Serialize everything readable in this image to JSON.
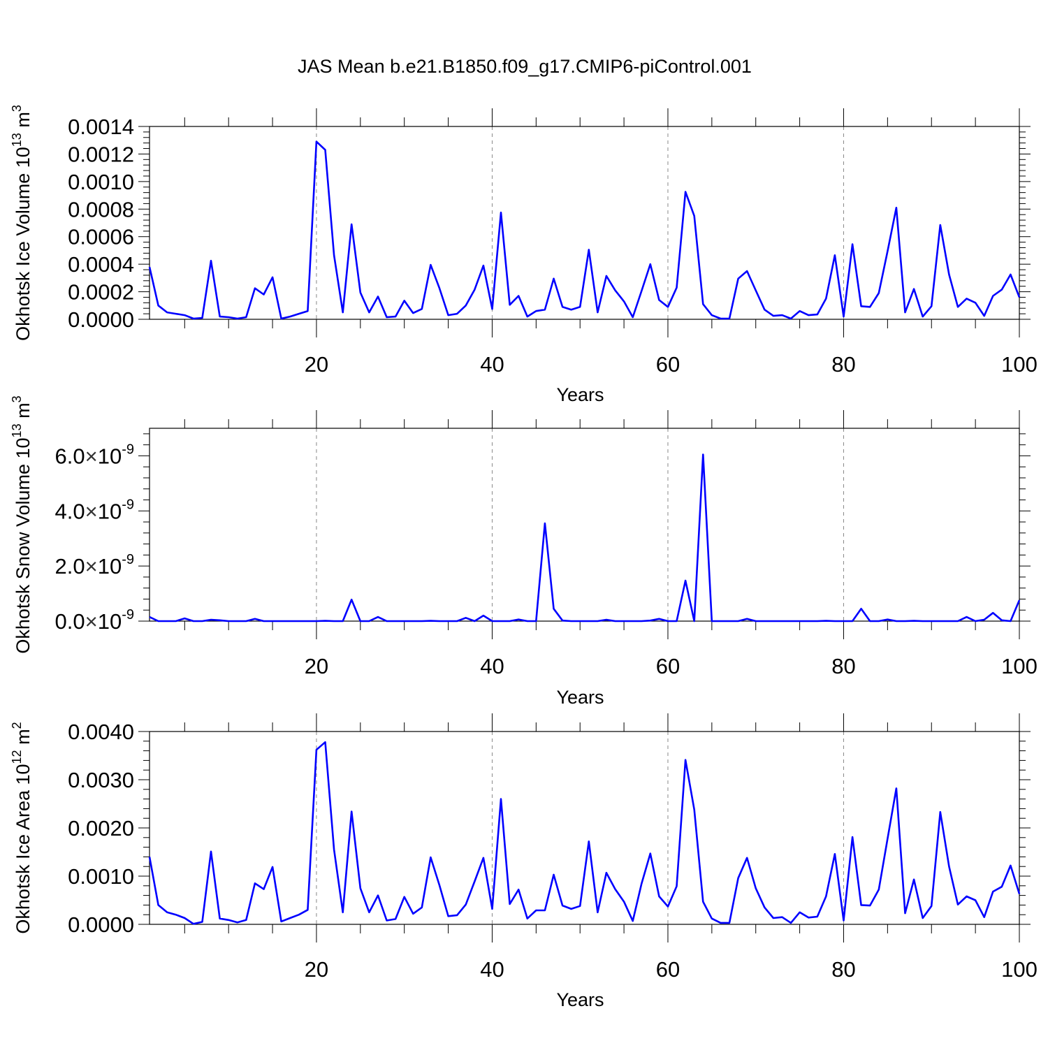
{
  "page": {
    "title": "JAS Mean b.e21.B1850.f09_g17.CMIP6-piControl.001"
  },
  "chart_data": [
    {
      "type": "line",
      "xlabel": "Years",
      "ylabel": "Okhotsk Ice Volume 10",
      "ylabel_sup": "13",
      "ylabel_unit": " m",
      "ylabel_unit_sup": "3",
      "xlim": [
        1,
        100
      ],
      "ylim": [
        0,
        0.0014
      ],
      "grid": "vertical-dashed",
      "color": "#0000ff",
      "x_ticks": [
        {
          "value": 20,
          "label": "20"
        },
        {
          "value": 40,
          "label": "40"
        },
        {
          "value": 60,
          "label": "60"
        },
        {
          "value": 80,
          "label": "80"
        },
        {
          "value": 100,
          "label": "100"
        }
      ],
      "y_ticks": [
        {
          "value": 0,
          "label": "0.0000"
        },
        {
          "value": 0.0002,
          "label": "0.0002"
        },
        {
          "value": 0.0004,
          "label": "0.0004"
        },
        {
          "value": 0.0006,
          "label": "0.0006"
        },
        {
          "value": 0.0008,
          "label": "0.0008"
        },
        {
          "value": 0.001,
          "label": "0.0010"
        },
        {
          "value": 0.0012,
          "label": "0.0012"
        },
        {
          "value": 0.0014,
          "label": "0.0014"
        }
      ],
      "x": [
        1,
        2,
        3,
        4,
        5,
        6,
        7,
        8,
        9,
        10,
        11,
        12,
        13,
        14,
        15,
        16,
        17,
        18,
        19,
        20,
        21,
        22,
        23,
        24,
        25,
        26,
        27,
        28,
        29,
        30,
        31,
        32,
        33,
        34,
        35,
        36,
        37,
        38,
        39,
        40,
        41,
        42,
        43,
        44,
        45,
        46,
        47,
        48,
        49,
        50,
        51,
        52,
        53,
        54,
        55,
        56,
        57,
        58,
        59,
        60,
        61,
        62,
        63,
        64,
        65,
        66,
        67,
        68,
        69,
        70,
        71,
        72,
        73,
        74,
        75,
        76,
        77,
        78,
        79,
        80,
        81,
        82,
        83,
        84,
        85,
        86,
        87,
        88,
        89,
        90,
        91,
        92,
        93,
        94,
        95,
        96,
        97,
        98,
        99,
        100
      ],
      "values": [
        0.00038,
        0.0001,
        5e-05,
        4e-05,
        3e-05,
        5e-06,
        1e-05,
        0.000425,
        2e-05,
        1.5e-05,
        5e-06,
        1.5e-05,
        0.000225,
        0.00018,
        0.000305,
        5e-06,
        2e-05,
        4e-05,
        6e-05,
        0.00129,
        0.00123,
        0.000465,
        5e-05,
        0.00069,
        0.000195,
        5e-05,
        0.000165,
        1.5e-05,
        2e-05,
        0.000135,
        4.5e-05,
        7.5e-05,
        0.000395,
        0.000225,
        3e-05,
        4e-05,
        0.0001,
        0.000215,
        0.00039,
        7.5e-05,
        0.000775,
        0.000105,
        0.00017,
        2e-05,
        6e-05,
        7e-05,
        0.000295,
        9e-05,
        7e-05,
        9e-05,
        0.000505,
        5e-05,
        0.000315,
        0.00021,
        0.00013,
        1.5e-05,
        0.000205,
        0.0004,
        0.00014,
        9e-05,
        0.00023,
        0.000925,
        0.00075,
        0.00011,
        3e-05,
        5e-06,
        5e-06,
        0.000295,
        0.00035,
        0.00021,
        7e-05,
        2.5e-05,
        3e-05,
        5e-06,
        6e-05,
        3e-05,
        3.5e-05,
        0.00015,
        0.000465,
        2e-05,
        0.000545,
        9.5e-05,
        9e-05,
        0.00019,
        0.000495,
        0.00081,
        5e-05,
        0.00022,
        2e-05,
        9.5e-05,
        0.000685,
        0.000325,
        9e-05,
        0.00015,
        0.00012,
        2.5e-05,
        0.00017,
        0.000215,
        0.000325,
        0.00016
      ]
    },
    {
      "type": "line",
      "xlabel": "Years",
      "ylabel": "Okhotsk Snow Volume 10",
      "ylabel_sup": "13",
      "ylabel_unit": " m",
      "ylabel_unit_sup": "3",
      "xlim": [
        1,
        100
      ],
      "ylim": [
        0,
        7e-09
      ],
      "grid": "vertical-dashed",
      "color": "#0000ff",
      "x_ticks": [
        {
          "value": 20,
          "label": "20"
        },
        {
          "value": 40,
          "label": "40"
        },
        {
          "value": 60,
          "label": "60"
        },
        {
          "value": 80,
          "label": "80"
        },
        {
          "value": 100,
          "label": "100"
        }
      ],
      "y_ticks": [
        {
          "value": 0,
          "mantissa": "0.0",
          "exp": "-9"
        },
        {
          "value": 2e-09,
          "mantissa": "2.0",
          "exp": "-9"
        },
        {
          "value": 4e-09,
          "mantissa": "4.0",
          "exp": "-9"
        },
        {
          "value": 6e-09,
          "mantissa": "6.0",
          "exp": "-9"
        }
      ],
      "x": [
        1,
        2,
        3,
        4,
        5,
        6,
        7,
        8,
        9,
        10,
        11,
        12,
        13,
        14,
        15,
        16,
        17,
        18,
        19,
        20,
        21,
        22,
        23,
        24,
        25,
        26,
        27,
        28,
        29,
        30,
        31,
        32,
        33,
        34,
        35,
        36,
        37,
        38,
        39,
        40,
        41,
        42,
        43,
        44,
        45,
        46,
        47,
        48,
        49,
        50,
        51,
        52,
        53,
        54,
        55,
        56,
        57,
        58,
        59,
        60,
        61,
        62,
        63,
        64,
        65,
        66,
        67,
        68,
        69,
        70,
        71,
        72,
        73,
        74,
        75,
        76,
        77,
        78,
        79,
        80,
        81,
        82,
        83,
        84,
        85,
        86,
        87,
        88,
        89,
        90,
        91,
        92,
        93,
        94,
        95,
        96,
        97,
        98,
        99,
        100
      ],
      "values": [
        1.5e-10,
        0,
        0,
        0,
        1e-10,
        0,
        0,
        5e-11,
        3e-11,
        0,
        0,
        0,
        8e-11,
        0,
        0,
        0,
        0,
        0,
        0,
        0,
        1e-11,
        0,
        0,
        7.8e-10,
        0,
        0,
        1.5e-10,
        0,
        0,
        0,
        0,
        0,
        1e-11,
        0,
        0,
        0,
        1.2e-10,
        0,
        2e-10,
        0,
        0,
        0,
        6e-11,
        0,
        0,
        3.55e-09,
        4.5e-10,
        2e-11,
        0,
        0,
        0,
        0,
        5e-11,
        0,
        0,
        0,
        0,
        2e-11,
        8e-11,
        0,
        0,
        1.47e-09,
        0,
        6.05e-09,
        0,
        0,
        0,
        0,
        8e-11,
        0,
        0,
        0,
        0,
        0,
        0,
        0,
        0,
        1e-11,
        0,
        0,
        0,
        4.5e-10,
        0,
        0,
        6e-11,
        0,
        0,
        1e-11,
        0,
        0,
        0,
        0,
        0,
        1.5e-10,
        0,
        5e-11,
        3e-10,
        3e-11,
        0,
        7.6e-10
      ]
    },
    {
      "type": "line",
      "xlabel": "Years",
      "ylabel": "Okhotsk Ice Area 10",
      "ylabel_sup": "12",
      "ylabel_unit": " m",
      "ylabel_unit_sup": "2",
      "xlim": [
        1,
        100
      ],
      "ylim": [
        0,
        0.004
      ],
      "grid": "vertical-dashed",
      "color": "#0000ff",
      "x_ticks": [
        {
          "value": 20,
          "label": "20"
        },
        {
          "value": 40,
          "label": "40"
        },
        {
          "value": 60,
          "label": "60"
        },
        {
          "value": 80,
          "label": "80"
        },
        {
          "value": 100,
          "label": "100"
        }
      ],
      "y_ticks": [
        {
          "value": 0,
          "label": "0.0000"
        },
        {
          "value": 0.001,
          "label": "0.0010"
        },
        {
          "value": 0.002,
          "label": "0.0020"
        },
        {
          "value": 0.003,
          "label": "0.0030"
        },
        {
          "value": 0.004,
          "label": "0.0040"
        }
      ],
      "x": [
        1,
        2,
        3,
        4,
        5,
        6,
        7,
        8,
        9,
        10,
        11,
        12,
        13,
        14,
        15,
        16,
        17,
        18,
        19,
        20,
        21,
        22,
        23,
        24,
        25,
        26,
        27,
        28,
        29,
        30,
        31,
        32,
        33,
        34,
        35,
        36,
        37,
        38,
        39,
        40,
        41,
        42,
        43,
        44,
        45,
        46,
        47,
        48,
        49,
        50,
        51,
        52,
        53,
        54,
        55,
        56,
        57,
        58,
        59,
        60,
        61,
        62,
        63,
        64,
        65,
        66,
        67,
        68,
        69,
        70,
        71,
        72,
        73,
        74,
        75,
        76,
        77,
        78,
        79,
        80,
        81,
        82,
        83,
        84,
        85,
        86,
        87,
        88,
        89,
        90,
        91,
        92,
        93,
        94,
        95,
        96,
        97,
        98,
        99,
        100
      ],
      "values": [
        0.0014,
        0.0004,
        0.00025,
        0.0002,
        0.00013,
        1e-05,
        5e-05,
        0.00151,
        0.00012,
        9e-05,
        4e-05,
        9e-05,
        0.00085,
        0.00073,
        0.00119,
        6e-05,
        0.00013,
        0.0002,
        0.0003,
        0.00362,
        0.00378,
        0.00155,
        0.00025,
        0.00234,
        0.00075,
        0.00025,
        0.0006,
        8e-05,
        0.00011,
        0.00057,
        0.00022,
        0.00035,
        0.00139,
        0.00081,
        0.00017,
        0.00019,
        0.00041,
        0.00089,
        0.00138,
        0.00032,
        0.0026,
        0.00042,
        0.00072,
        0.00012,
        0.00029,
        0.00029,
        0.00103,
        0.00039,
        0.00032,
        0.00038,
        0.00172,
        0.00025,
        0.00107,
        0.00073,
        0.00047,
        7e-05,
        0.00084,
        0.00147,
        0.00058,
        0.00037,
        0.00079,
        0.00341,
        0.00238,
        0.00047,
        0.00012,
        3e-05,
        3e-05,
        0.00096,
        0.00138,
        0.00075,
        0.00035,
        0.00013,
        0.00015,
        3e-05,
        0.00025,
        0.00014,
        0.00016,
        0.00058,
        0.00146,
        8e-05,
        0.00181,
        0.0004,
        0.00039,
        0.00072,
        0.00178,
        0.00282,
        0.00023,
        0.00093,
        0.00013,
        0.00038,
        0.00233,
        0.0012,
        0.00041,
        0.00058,
        0.0005,
        0.00015,
        0.00068,
        0.00078,
        0.00122,
        0.00063
      ]
    }
  ]
}
